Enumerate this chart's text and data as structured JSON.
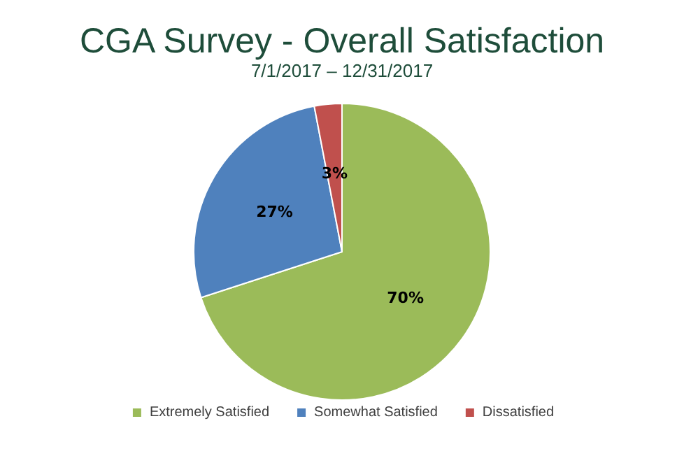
{
  "chart_data": {
    "type": "pie",
    "title": "CGA Survey - Overall Satisfaction",
    "subtitle": "7/1/2017 – 12/31/2017",
    "categories": [
      "Extremely Satisfied",
      "Somewhat Satisfied",
      "Dissatisfied"
    ],
    "values": [
      70,
      27,
      3
    ],
    "value_labels": [
      "70%",
      "27%",
      "3%"
    ],
    "colors": [
      "#9bbb59",
      "#4f81bd",
      "#c0504d"
    ],
    "legend": "bottom"
  }
}
